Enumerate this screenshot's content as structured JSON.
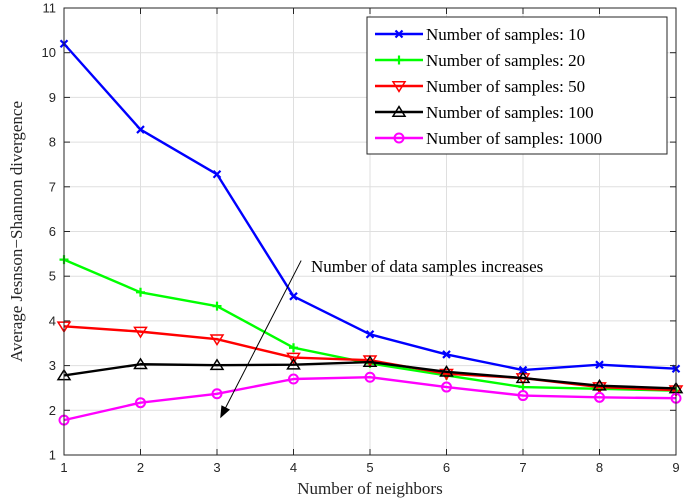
{
  "chart_data": {
    "type": "line",
    "xlabel": "Number of neighbors",
    "ylabel": "Average Jesnson−Shannon divergence",
    "xlim": [
      1,
      9
    ],
    "ylim": [
      1,
      11
    ],
    "xticks": [
      "1",
      "2",
      "3",
      "4",
      "5",
      "6",
      "7",
      "8",
      "9"
    ],
    "yticks": [
      "1",
      "2",
      "3",
      "4",
      "5",
      "6",
      "7",
      "8",
      "9",
      "10",
      "11"
    ],
    "grid": true,
    "legend_position": "top-right",
    "x": [
      1,
      2,
      3,
      4,
      5,
      6,
      7,
      8,
      9
    ],
    "series": [
      {
        "name": "Number of samples: 10",
        "color": "#0000ff",
        "marker": "x",
        "values": [
          10.2,
          8.28,
          7.28,
          4.55,
          3.7,
          3.25,
          2.9,
          3.02,
          2.93
        ]
      },
      {
        "name": "Number of samples: 20",
        "color": "#00ff00",
        "marker": "plus",
        "values": [
          5.37,
          4.64,
          4.33,
          3.4,
          3.05,
          2.78,
          2.52,
          2.48,
          2.44
        ]
      },
      {
        "name": "Number of samples: 50",
        "color": "#ff0000",
        "marker": "triangle-down",
        "values": [
          3.88,
          3.76,
          3.59,
          3.18,
          3.12,
          2.82,
          2.72,
          2.52,
          2.45
        ]
      },
      {
        "name": "Number of samples: 100",
        "color": "#000000",
        "marker": "triangle-up",
        "values": [
          2.78,
          3.03,
          3.01,
          3.02,
          3.08,
          2.86,
          2.72,
          2.55,
          2.49
        ]
      },
      {
        "name": "Number of samples: 1000",
        "color": "#ff00ff",
        "marker": "circle",
        "values": [
          1.78,
          2.17,
          2.37,
          2.7,
          2.74,
          2.52,
          2.33,
          2.29,
          2.27
        ]
      }
    ],
    "annotations": [
      {
        "text": "Number of data samples increases",
        "arrow_from": [
          4.1,
          5.35
        ],
        "arrow_to": [
          3.05,
          1.85
        ]
      }
    ]
  }
}
